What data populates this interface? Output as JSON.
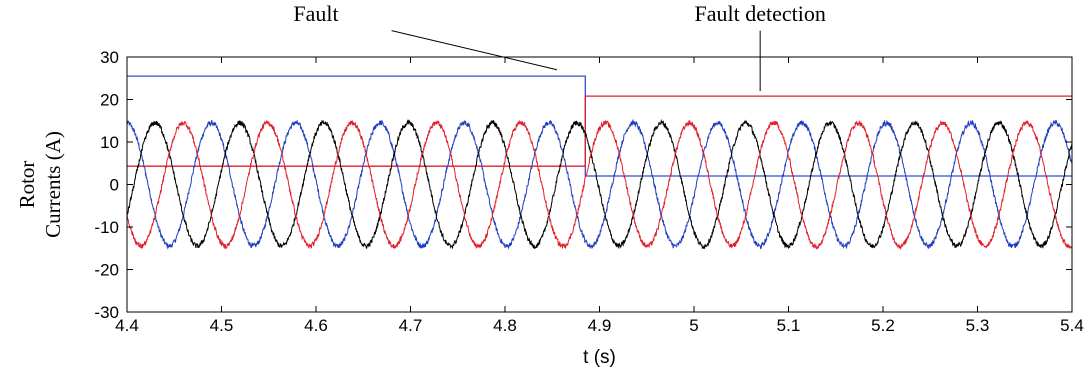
{
  "chart_data": {
    "type": "line",
    "xlabel": "t (s)",
    "ylabel_lines": [
      "Rotor",
      "Currents (A)"
    ],
    "xlim": [
      4.4,
      5.4
    ],
    "ylim": [
      -30,
      30
    ],
    "xticks": [
      "4.4",
      "4.5",
      "4.6",
      "4.7",
      "4.8",
      "4.9",
      "5",
      "5.1",
      "5.2",
      "5.3",
      "5.4"
    ],
    "yticks": [
      "30",
      "20",
      "10",
      "0",
      "-10",
      "-20",
      "-30"
    ],
    "grid": false,
    "sinusoid": {
      "amplitude": 14.5,
      "frequency_hz": 11.2,
      "noise": 0.6
    },
    "series": [
      {
        "color": "#1f3fbf",
        "phase_deg": 90
      },
      {
        "color": "#000000",
        "phase_deg": -30
      },
      {
        "color": "#e0202a",
        "phase_deg": 210
      }
    ],
    "fault_signal": {
      "color": "#3050c8",
      "x": [
        4.4,
        4.885,
        4.885,
        5.4
      ],
      "y": [
        25.5,
        25.5,
        2.0,
        2.0
      ]
    },
    "detection_signal": {
      "color": "#e0202a",
      "x": [
        4.4,
        4.885,
        4.885,
        5.4
      ],
      "y": [
        4.3,
        4.3,
        20.8,
        20.8
      ]
    },
    "annotations": [
      {
        "text": "Fault",
        "x": 4.6,
        "y": 38.5,
        "arrow_from": [
          4.68,
          36.2
        ],
        "arrow_to": [
          4.855,
          27.0
        ]
      },
      {
        "text": "Fault detection",
        "x": 5.07,
        "y": 38.5,
        "arrow_from": [
          5.07,
          36.2
        ],
        "arrow_to": [
          5.07,
          22.0
        ]
      }
    ]
  }
}
